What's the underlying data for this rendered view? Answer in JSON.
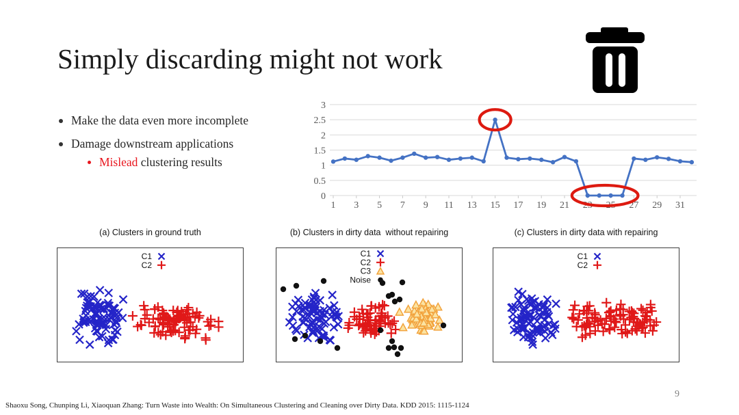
{
  "title": "Simply discarding might not work",
  "bullets": {
    "b1": "Make the data even more incomplete",
    "b2": "Damage downstream applications",
    "b3_highlight": "Mislead",
    "b3_rest": " clustering results"
  },
  "footer": "Shaoxu Song, Chunping Li, Xiaoquan Zhang: Turn Waste into Wealth: On Simultaneous Clustering and Cleaning over Dirty Data. KDD 2015: 1115-1124",
  "page_number": "9",
  "icons": {
    "trash": "trash-icon"
  },
  "colors": {
    "line_blue": "#4472C4",
    "grid_gray": "#D9D9D9",
    "axis_label_gray": "#595959",
    "annotation_red": "#DD1A10",
    "cluster_blue": "#2424C8",
    "cluster_red": "#E01818",
    "cluster_orange": "#F2A33C",
    "triangle_fill": "#FBE3A2",
    "noise_black": "#111111",
    "mislead_red": "#E8151D"
  },
  "chart_data": [
    {
      "type": "line",
      "title": "",
      "x": [
        1,
        2,
        3,
        4,
        5,
        6,
        7,
        8,
        9,
        10,
        11,
        12,
        13,
        14,
        15,
        16,
        17,
        18,
        19,
        20,
        21,
        22,
        23,
        24,
        25,
        26,
        27,
        28,
        29,
        30,
        31,
        32
      ],
      "values": [
        1.12,
        1.22,
        1.18,
        1.3,
        1.25,
        1.15,
        1.25,
        1.38,
        1.25,
        1.27,
        1.18,
        1.22,
        1.25,
        1.13,
        2.5,
        1.25,
        1.2,
        1.22,
        1.18,
        1.1,
        1.27,
        1.13,
        0,
        0,
        0,
        0,
        1.22,
        1.18,
        1.26,
        1.21,
        1.13,
        1.1
      ],
      "ylim": [
        0,
        3
      ],
      "yticks": [
        0,
        0.5,
        1,
        1.5,
        2,
        2.5,
        3
      ],
      "xtick_labels": [
        1,
        3,
        5,
        7,
        9,
        11,
        13,
        15,
        17,
        19,
        21,
        23,
        25,
        27,
        29,
        31
      ],
      "grid": true,
      "line_color": "#4472C4",
      "annotations": [
        {
          "shape": "ellipse",
          "color": "#DD1A10",
          "from": 15,
          "to": 15,
          "note": "outlier spike circled"
        },
        {
          "shape": "ellipse",
          "color": "#DD1A10",
          "from": 23,
          "to": 26,
          "note": "discarded zero values circled"
        }
      ]
    },
    {
      "type": "scatter",
      "title": "(a) Clusters in ground truth",
      "legend": [
        {
          "label": "C1",
          "marker": "x",
          "color": "#2424C8"
        },
        {
          "label": "C2",
          "marker": "plus",
          "color": "#E01818"
        }
      ],
      "clusters": [
        {
          "label": "C1",
          "marker": "x",
          "color": "#2424C8",
          "count": 88,
          "center": [
            62,
            103
          ],
          "spread": [
            44,
            47
          ],
          "seed": 101
        },
        {
          "label": "C2",
          "marker": "plus",
          "color": "#E01818",
          "count": 92,
          "center": [
            171,
            107
          ],
          "spread": [
            70,
            29
          ],
          "seed": 202
        }
      ]
    },
    {
      "type": "scatter",
      "title": "(b) Clusters in dirty data  without repairing",
      "legend": [
        {
          "label": "C1",
          "marker": "x",
          "color": "#2424C8"
        },
        {
          "label": "C2",
          "marker": "plus",
          "color": "#E01818"
        },
        {
          "label": "C3",
          "marker": "triangle",
          "color": "#F2A33C",
          "fill": "#FBE3A2"
        },
        {
          "label": "Noise",
          "marker": "dot",
          "color": "#111111"
        }
      ],
      "clusters": [
        {
          "label": "C1",
          "marker": "x",
          "color": "#2424C8",
          "count": 85,
          "center": [
            57,
            99
          ],
          "spread": [
            42,
            39
          ],
          "seed": 303
        },
        {
          "label": "C2",
          "marker": "plus",
          "color": "#E01818",
          "count": 66,
          "center": [
            140,
            104
          ],
          "spread": [
            40,
            26
          ],
          "seed": 404
        },
        {
          "label": "C3",
          "marker": "triangle",
          "color": "#F2A33C",
          "fill": "#FBE3A2",
          "count": 58,
          "center": [
            211,
            102
          ],
          "spread": [
            34,
            26
          ],
          "seed": 505
        }
      ],
      "noise_color": "#111111",
      "noise_points": [
        [
          10,
          60
        ],
        [
          29,
          55
        ],
        [
          69,
          48
        ],
        [
          155,
          51
        ],
        [
          184,
          50
        ],
        [
          164,
          70
        ],
        [
          169,
          68
        ],
        [
          173,
          78
        ],
        [
          180,
          75
        ],
        [
          244,
          113
        ],
        [
          27,
          133
        ],
        [
          42,
          128
        ],
        [
          64,
          136
        ],
        [
          89,
          146
        ],
        [
          169,
          136
        ],
        [
          172,
          145
        ],
        [
          164,
          146
        ],
        [
          182,
          146
        ],
        [
          177,
          155
        ],
        [
          152,
          120
        ]
      ]
    },
    {
      "type": "scatter",
      "title": "(c) Clusters in dirty data with repairing",
      "legend": [
        {
          "label": "C1",
          "marker": "x",
          "color": "#2424C8"
        },
        {
          "label": "C2",
          "marker": "plus",
          "color": "#E01818"
        }
      ],
      "clusters": [
        {
          "label": "C1",
          "marker": "x",
          "color": "#2424C8",
          "count": 88,
          "center": [
            57,
            101
          ],
          "spread": [
            42,
            43
          ],
          "seed": 606
        },
        {
          "label": "C2",
          "marker": "plus",
          "color": "#E01818",
          "count": 50,
          "center": [
            150,
            103
          ],
          "spread": [
            38,
            28
          ],
          "seed": 707
        },
        {
          "label": "C2",
          "marker": "plus",
          "color": "#E01818",
          "count": 50,
          "center": [
            210,
            108
          ],
          "spread": [
            40,
            28
          ],
          "seed": 808
        }
      ]
    }
  ]
}
